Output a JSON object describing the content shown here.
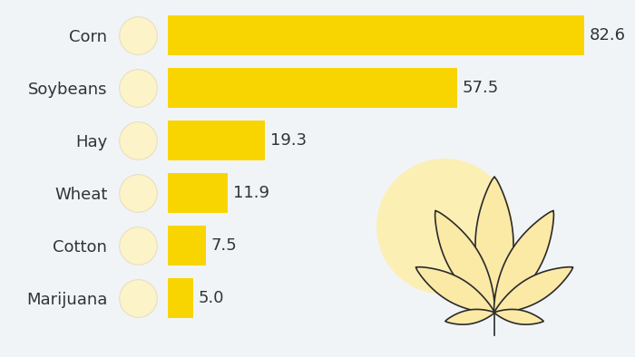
{
  "chart_data": {
    "type": "bar",
    "orientation": "horizontal",
    "categories": [
      "Corn",
      "Soybeans",
      "Hay",
      "Wheat",
      "Cotton",
      "Marijuana"
    ],
    "values": [
      82.6,
      57.5,
      19.3,
      11.9,
      7.5,
      5.0
    ],
    "color": "#f8d500",
    "data_labels": true,
    "tick_labels": "y",
    "grid": false
  }
}
